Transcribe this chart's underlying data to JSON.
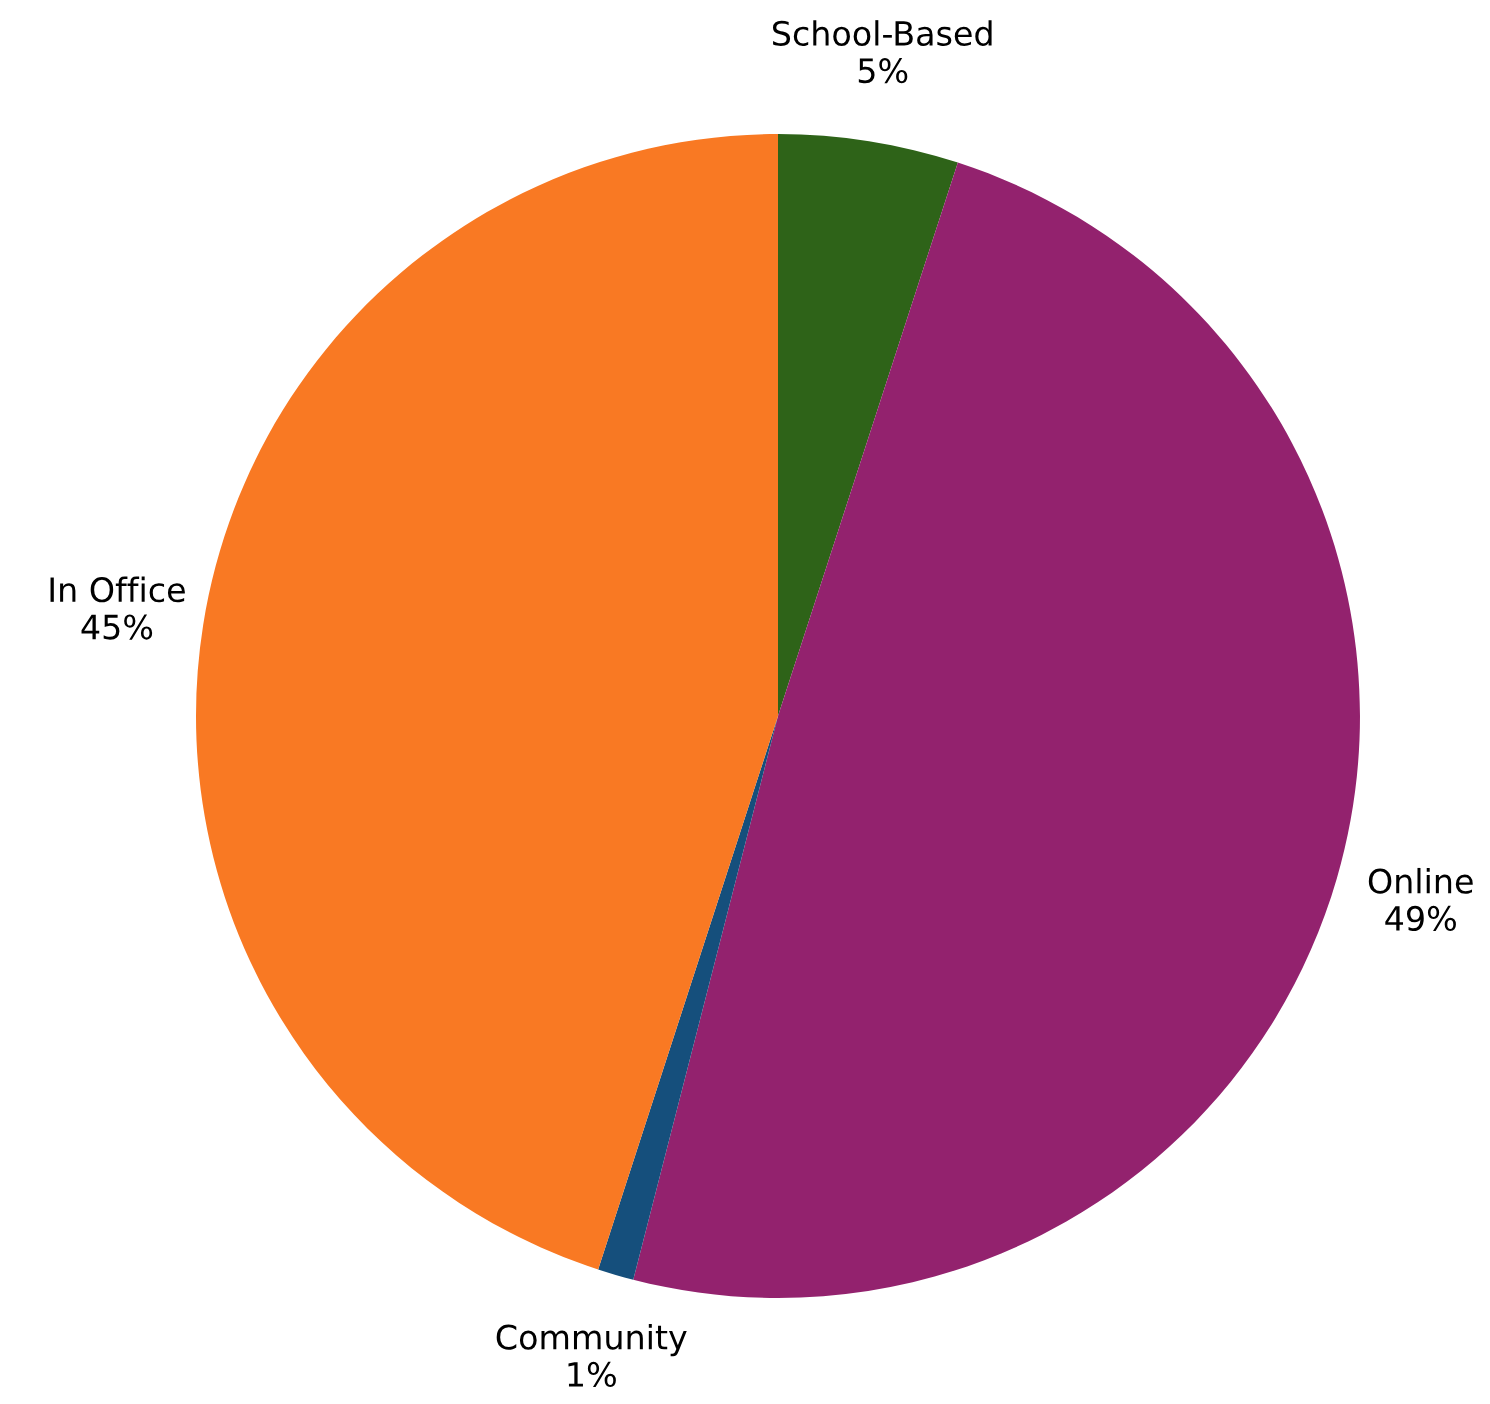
{
  "chart_data": {
    "type": "pie",
    "categories": [
      "School-Based",
      "Online",
      "Community",
      "In Office"
    ],
    "values": [
      5,
      49,
      1,
      45
    ],
    "value_labels": [
      "5%",
      "49%",
      "1%",
      "45%"
    ],
    "colors": [
      "#2e6318",
      "#93226e",
      "#154f7c",
      "#f97923"
    ],
    "legend": false
  }
}
